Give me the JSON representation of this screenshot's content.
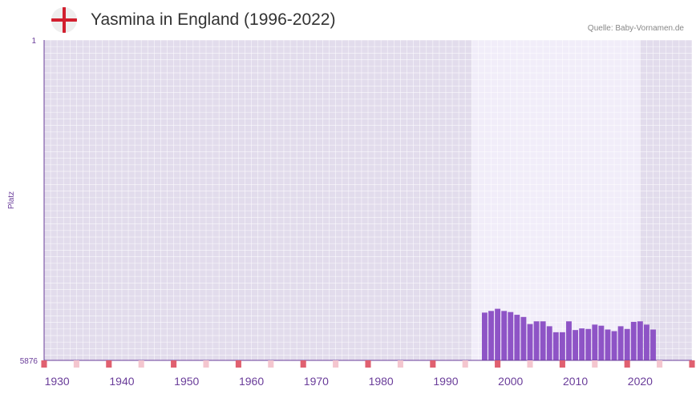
{
  "header": {
    "title": "Yasmina in England (1996-2022)",
    "source": "Quelle: Baby-Vornamen.de",
    "flag_icon": "england-flag-icon"
  },
  "colors": {
    "bar": "#8e54c6",
    "axis": "#6a3d9a",
    "plot_bg": "#e2dcec",
    "highlight_bg": "#f1edf9",
    "decade_marker": "#e06070",
    "halfdecade_marker": "#f4c6cf"
  },
  "chart_data": {
    "type": "bar",
    "title": "Yasmina in England (1996-2022)",
    "ylabel": "Platz",
    "xlabel": "",
    "y_inverted": true,
    "ylim": [
      1,
      5876
    ],
    "y_ticks": [
      "1",
      "5876"
    ],
    "x_range": [
      1928,
      2028
    ],
    "x_ticks": [
      1930,
      1940,
      1950,
      1960,
      1970,
      1980,
      1990,
      2000,
      2010,
      2020
    ],
    "highlight_range": [
      1994,
      2020
    ],
    "years": [
      1996,
      1997,
      1998,
      1999,
      2000,
      2001,
      2002,
      2003,
      2004,
      2005,
      2006,
      2007,
      2008,
      2009,
      2010,
      2011,
      2012,
      2013,
      2014,
      2015,
      2016,
      2017,
      2018,
      2019,
      2020,
      2021,
      2022
    ],
    "ranks": [
      5000,
      4970,
      4930,
      4970,
      4990,
      5040,
      5080,
      5210,
      5160,
      5160,
      5250,
      5360,
      5360,
      5160,
      5320,
      5290,
      5300,
      5220,
      5240,
      5310,
      5340,
      5250,
      5300,
      5170,
      5160,
      5220,
      5310
    ]
  }
}
